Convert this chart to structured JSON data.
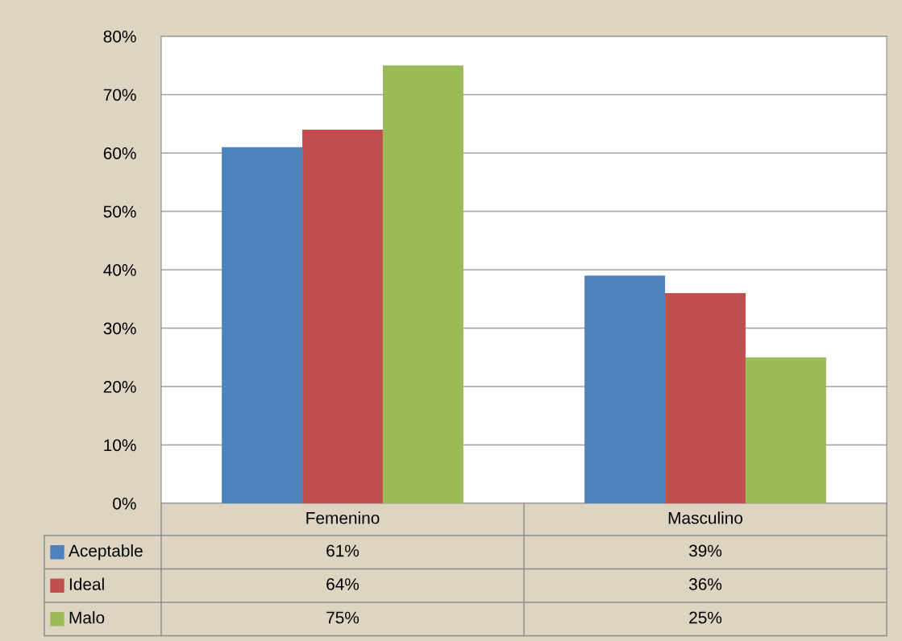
{
  "chart_data": {
    "type": "bar",
    "categories": [
      "Femenino",
      "Masculino"
    ],
    "series": [
      {
        "name": "Aceptable",
        "color": "#4f81bd",
        "values": [
          61,
          39
        ],
        "value_labels": [
          "61%",
          "39%"
        ]
      },
      {
        "name": "Ideal",
        "color": "#c0504d",
        "values": [
          64,
          36
        ],
        "value_labels": [
          "64%",
          "36%"
        ]
      },
      {
        "name": "Malo",
        "color": "#9bbb59",
        "values": [
          75,
          25
        ],
        "value_labels": [
          "75%",
          "25%"
        ]
      }
    ],
    "ylim": [
      0,
      80
    ],
    "yticks": [
      {
        "value": 0,
        "label": "0%"
      },
      {
        "value": 10,
        "label": "10%"
      },
      {
        "value": 20,
        "label": "20%"
      },
      {
        "value": 30,
        "label": "30%"
      },
      {
        "value": 40,
        "label": "40%"
      },
      {
        "value": 50,
        "label": "50%"
      },
      {
        "value": 60,
        "label": "60%"
      },
      {
        "value": 70,
        "label": "70%"
      },
      {
        "value": 80,
        "label": "80%"
      }
    ],
    "grid": "y",
    "legend": "bottom"
  }
}
